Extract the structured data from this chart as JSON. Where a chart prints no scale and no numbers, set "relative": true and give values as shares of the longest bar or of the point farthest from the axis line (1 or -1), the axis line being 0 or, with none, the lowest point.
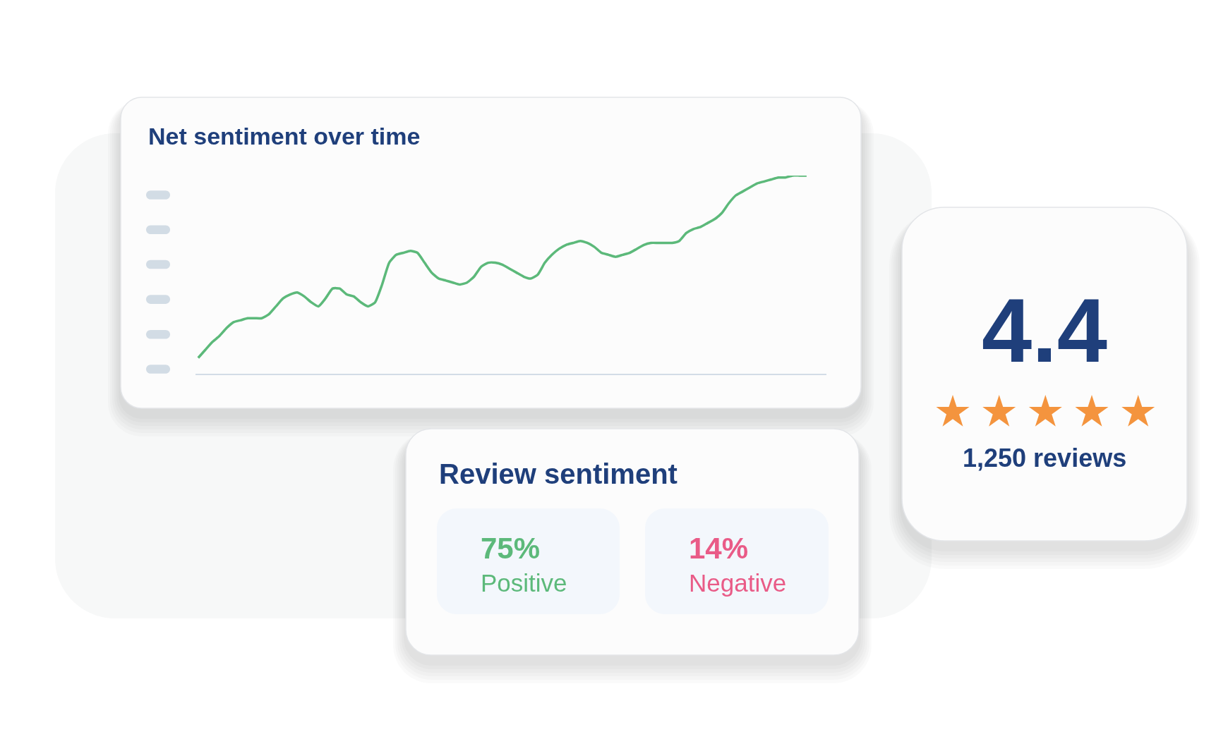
{
  "chart_data": [
    {
      "type": "line",
      "title": "Net sentiment over time",
      "relative": true,
      "tick_labels": false,
      "categories": [
        null,
        null,
        null,
        null,
        null,
        null,
        null,
        null,
        null,
        null,
        null,
        null,
        null,
        null,
        null,
        null,
        null,
        null,
        null,
        null,
        null,
        null,
        null,
        null,
        null,
        null,
        null,
        null,
        null,
        null,
        null,
        null,
        null,
        null,
        null,
        null,
        null,
        null,
        null,
        null,
        null,
        null,
        null,
        null,
        null,
        null,
        null,
        null,
        null,
        null,
        null,
        null,
        null,
        null,
        null,
        null,
        null,
        null,
        null,
        null,
        null,
        null,
        null,
        null,
        null,
        null,
        null,
        null,
        null,
        null,
        null,
        null,
        null,
        null,
        null,
        null,
        null,
        null,
        null,
        null,
        null,
        null,
        null,
        null,
        null,
        null,
        null
      ],
      "values": [
        0.08,
        0.12,
        0.16,
        0.19,
        0.23,
        0.26,
        0.27,
        0.28,
        0.28,
        0.28,
        0.3,
        0.34,
        0.38,
        0.4,
        0.41,
        0.39,
        0.36,
        0.34,
        0.38,
        0.43,
        0.43,
        0.4,
        0.39,
        0.36,
        0.34,
        0.36,
        0.45,
        0.56,
        0.6,
        0.61,
        0.62,
        0.61,
        0.56,
        0.51,
        0.48,
        0.47,
        0.46,
        0.45,
        0.46,
        0.49,
        0.54,
        0.56,
        0.56,
        0.55,
        0.53,
        0.51,
        0.49,
        0.48,
        0.5,
        0.56,
        0.6,
        0.63,
        0.65,
        0.66,
        0.67,
        0.66,
        0.64,
        0.61,
        0.6,
        0.59,
        0.6,
        0.61,
        0.63,
        0.65,
        0.66,
        0.66,
        0.66,
        0.66,
        0.67,
        0.71,
        0.73,
        0.74,
        0.76,
        0.78,
        0.81,
        0.86,
        0.9,
        0.92,
        0.94,
        0.96,
        0.97,
        0.98,
        0.99,
        0.99,
        1.0,
        1.0,
        1.0
      ],
      "color": "#5cb97a"
    },
    {
      "type": "other",
      "title": "Review sentiment",
      "annotations": [
        "75%",
        "Positive",
        "14%",
        "Negative"
      ]
    },
    {
      "type": "other",
      "annotations": [
        "4.4",
        "1,250 reviews"
      ]
    }
  ]
}
